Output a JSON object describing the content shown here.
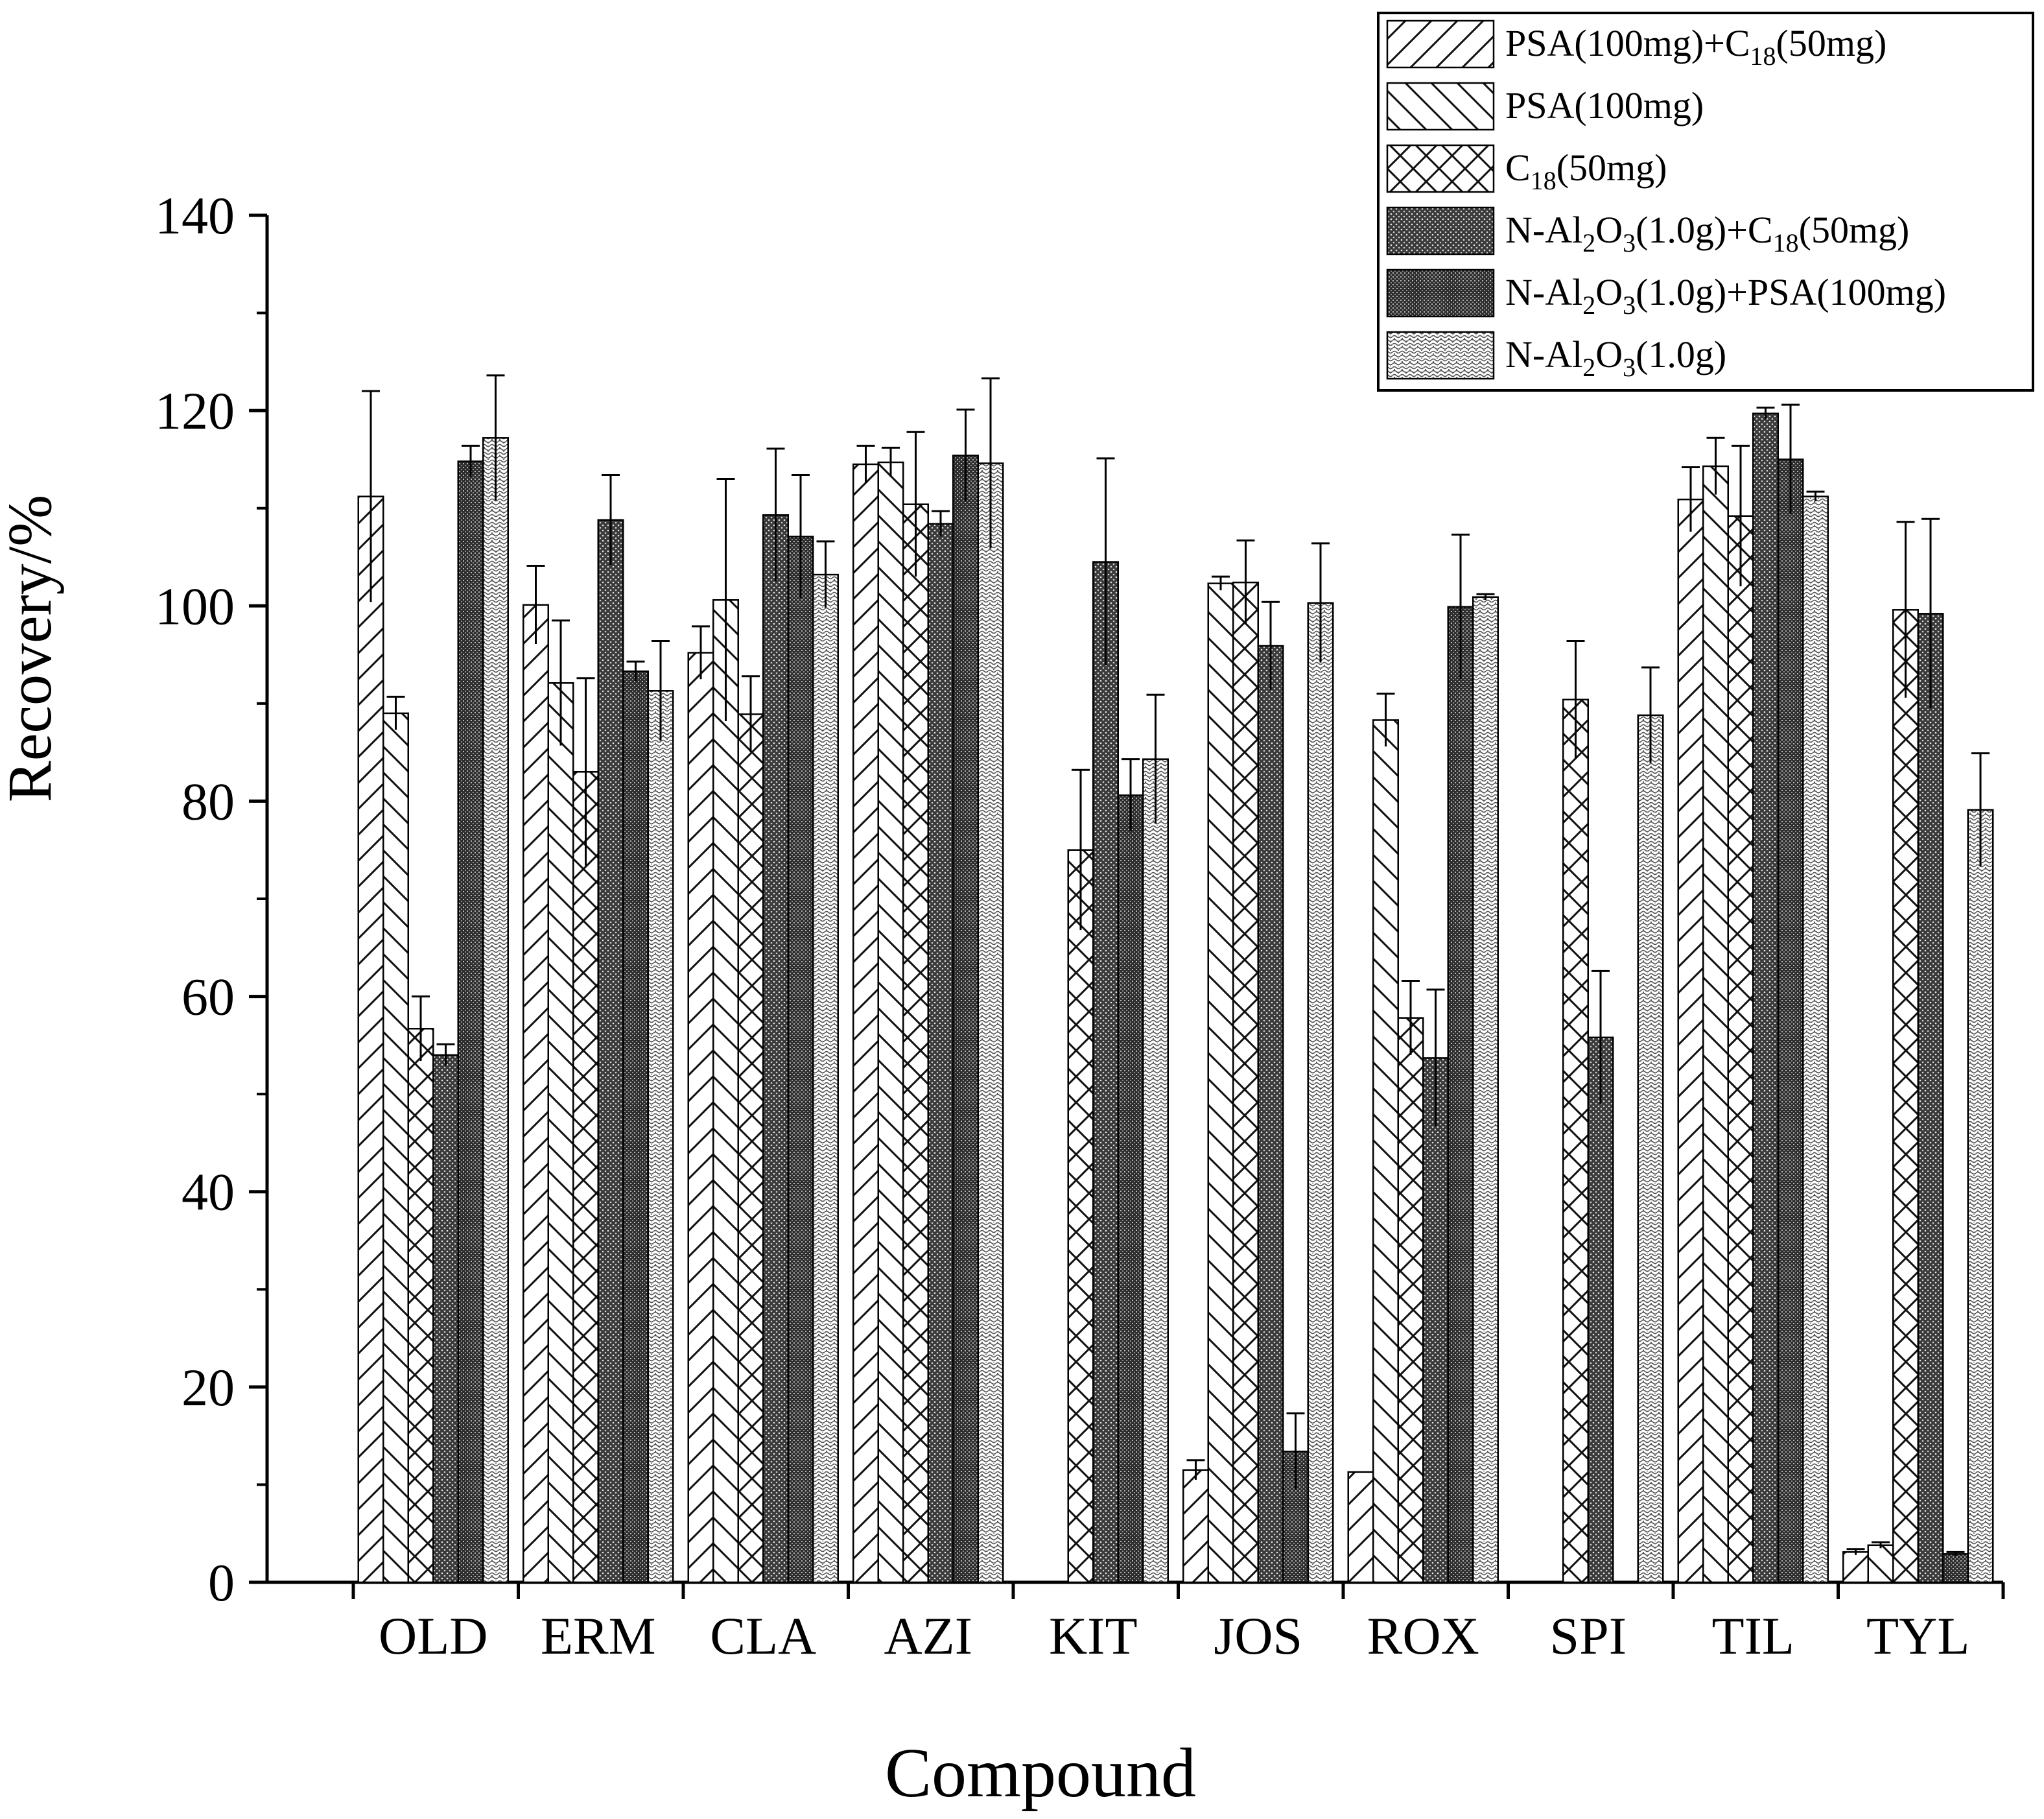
{
  "chart_data": {
    "type": "bar",
    "xlabel": "Compound",
    "ylabel": "Recovery/%",
    "ylim": [
      0,
      140
    ],
    "yticks": [
      0,
      20,
      40,
      60,
      80,
      100,
      120,
      140
    ],
    "categories": [
      "OLD",
      "ERM",
      "CLA",
      "AZI",
      "KIT",
      "JOS",
      "ROX",
      "SPI",
      "TIL",
      "TYL"
    ],
    "legend_position": "top-right",
    "series": [
      {
        "name": "PSA(100mg)+C18(50mg)",
        "legend": {
          "parts": [
            {
              "t": "PSA(100mg)+C"
            },
            {
              "t": "18",
              "sub": true
            },
            {
              "t": "(50mg)"
            }
          ]
        },
        "pattern": "hatch-fwd",
        "values": [
          111.2,
          100.1,
          95.2,
          114.5,
          null,
          11.5,
          11.3,
          null,
          110.9,
          3.1
        ],
        "errors": [
          10.8,
          4.0,
          2.7,
          1.9,
          null,
          1.0,
          0.0,
          null,
          3.3,
          0.3
        ]
      },
      {
        "name": "PSA(100mg)",
        "legend": {
          "parts": [
            {
              "t": "PSA(100mg)"
            }
          ]
        },
        "pattern": "hatch-back",
        "values": [
          89.0,
          92.1,
          100.6,
          114.7,
          null,
          102.3,
          88.3,
          null,
          114.3,
          3.8
        ],
        "errors": [
          1.7,
          6.4,
          12.4,
          1.5,
          null,
          0.7,
          2.7,
          null,
          2.9,
          0.3
        ]
      },
      {
        "name": "C18(50mg)",
        "legend": {
          "parts": [
            {
              "t": "C"
            },
            {
              "t": "18",
              "sub": true
            },
            {
              "t": "(50mg)"
            }
          ]
        },
        "pattern": "crosshatch",
        "values": [
          56.7,
          83.0,
          88.9,
          110.4,
          75.0,
          102.4,
          57.8,
          90.4,
          109.2,
          99.6
        ],
        "errors": [
          3.3,
          9.6,
          3.9,
          7.4,
          8.2,
          4.3,
          3.8,
          6.0,
          7.2,
          9.0
        ]
      },
      {
        "name": "N-Al2O3(1.0g)+C18(50mg)",
        "legend": {
          "parts": [
            {
              "t": "N-Al"
            },
            {
              "t": "2",
              "sub": true
            },
            {
              "t": "O"
            },
            {
              "t": "3",
              "sub": true
            },
            {
              "t": "(1.0g)+C"
            },
            {
              "t": "18",
              "sub": true
            },
            {
              "t": "(50mg)"
            }
          ]
        },
        "pattern": "dots-dark",
        "values": [
          54.0,
          108.8,
          109.3,
          108.4,
          104.5,
          95.9,
          53.7,
          55.8,
          119.7,
          99.2
        ],
        "errors": [
          1.1,
          4.6,
          6.8,
          1.3,
          10.6,
          4.5,
          7.0,
          6.8,
          0.6,
          9.7
        ]
      },
      {
        "name": "N-Al2O3(1.0g)+PSA(100mg)",
        "legend": {
          "parts": [
            {
              "t": "N-Al"
            },
            {
              "t": "2",
              "sub": true
            },
            {
              "t": "O"
            },
            {
              "t": "3",
              "sub": true
            },
            {
              "t": "(1.0g)+PSA(100mg)"
            }
          ]
        },
        "pattern": "grid-dark",
        "values": [
          114.8,
          93.3,
          107.1,
          115.4,
          80.6,
          13.4,
          99.9,
          null,
          115.0,
          2.9
        ],
        "errors": [
          1.6,
          1.0,
          6.3,
          4.7,
          3.7,
          3.9,
          7.4,
          null,
          5.6,
          0.2
        ]
      },
      {
        "name": "N-Al2O3(1.0g)",
        "legend": {
          "parts": [
            {
              "t": "N-Al"
            },
            {
              "t": "2",
              "sub": true
            },
            {
              "t": "O"
            },
            {
              "t": "3",
              "sub": true
            },
            {
              "t": "(1.0g)"
            }
          ]
        },
        "pattern": "wave-light",
        "values": [
          117.2,
          91.3,
          103.2,
          114.6,
          84.3,
          100.3,
          100.9,
          88.8,
          111.2,
          79.1
        ],
        "errors": [
          6.4,
          5.1,
          3.4,
          8.7,
          6.6,
          6.1,
          0.3,
          4.9,
          0.5,
          5.8
        ]
      }
    ]
  }
}
